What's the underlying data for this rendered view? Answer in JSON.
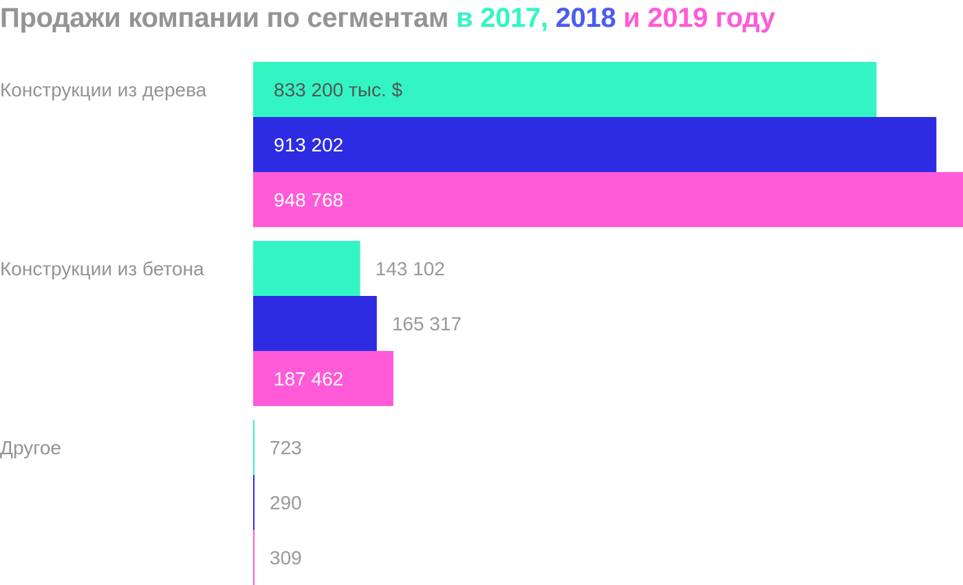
{
  "colors": {
    "2017": "#33f5c4",
    "2018": "#2d2ce3",
    "2019": "#ff5bd8",
    "title_gray": "#949494",
    "title_2018": "#4a5cf0",
    "label_dark": "#555555",
    "label_light": "#ffffff",
    "label_gray": "#999999"
  },
  "title": {
    "part1": "Продажи компании по сегментам ",
    "part2": "в 2017,",
    "part3": " 2018",
    "part4": " и 2019 году"
  },
  "chart_data": {
    "type": "bar",
    "orientation": "horizontal",
    "unit": "тыс. $",
    "categories": [
      "Конструкции из дерева",
      "Конструкции из бетона",
      "Другое"
    ],
    "series": [
      {
        "name": "2017",
        "color": "#33f5c4",
        "values": [
          833200,
          143102,
          723
        ],
        "labels": [
          "833 200 тыс. $",
          "143 102",
          "723"
        ]
      },
      {
        "name": "2018",
        "color": "#2d2ce3",
        "values": [
          913202,
          165317,
          290
        ],
        "labels": [
          "913 202",
          "165 317",
          "290"
        ]
      },
      {
        "name": "2019",
        "color": "#ff5bd8",
        "values": [
          948768,
          187462,
          309
        ],
        "labels": [
          "948 768",
          "187 462",
          "309"
        ]
      }
    ],
    "xlim": [
      0,
      948768
    ],
    "grid": false,
    "legend": "in title"
  }
}
